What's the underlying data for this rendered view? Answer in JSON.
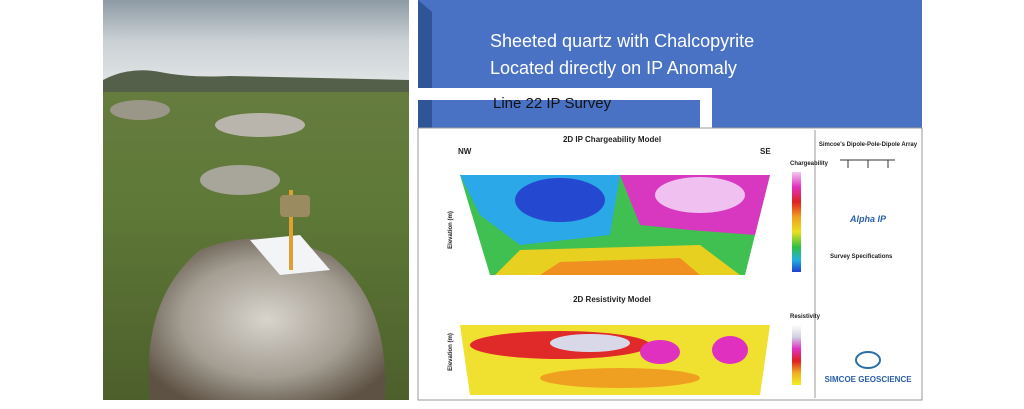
{
  "banner": {
    "line1": "Sheeted quartz with Chalcopyrite",
    "line2": "Located directly on IP Anomaly",
    "arrow_label": "Line 22 IP Survey"
  },
  "figure": {
    "chargeability": {
      "title": "2D IP Chargeability Model",
      "left": "NW",
      "right": "SE",
      "axis": "Elevation (m)",
      "legend": "Chargeability"
    },
    "resistivity": {
      "title": "2D Resistivity Model",
      "axis": "Elevation (m)",
      "legend": "Resistivity"
    },
    "sidebar": {
      "array_title": "Simcoe's Dipole-Pole-Dipole Array",
      "logo": "Alpha IP",
      "specs": "Survey Specifications",
      "company": "SIMCOE GEOSCIENCE"
    }
  }
}
